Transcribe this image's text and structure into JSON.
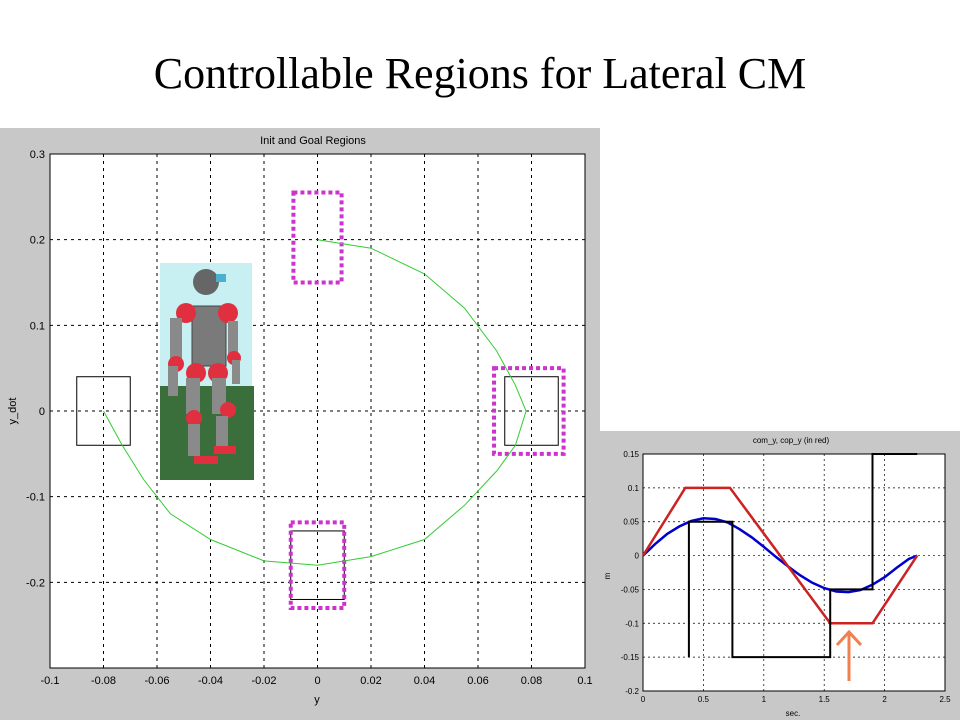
{
  "slide": {
    "title": "Controllable Regions for Lateral CM"
  },
  "chart_data": [
    {
      "type": "scatter",
      "title": "Init and Goal Regions",
      "xlabel": "y",
      "ylabel": "y_dot",
      "xlim": [
        -0.1,
        0.1
      ],
      "ylim": [
        -0.3,
        0.3
      ],
      "xticks": [
        "-0.1",
        "-0.08",
        "-0.06",
        "-0.04",
        "-0.02",
        "0",
        "0.02",
        "0.04",
        "0.06",
        "0.08",
        "0.1"
      ],
      "yticks": [
        "0.3",
        "0.2",
        "0.1",
        "0",
        "-0.1",
        "-0.2"
      ],
      "grid": true,
      "trajectory": {
        "color": "#33cc33",
        "points": [
          [
            0,
            0.2
          ],
          [
            0.02,
            0.19
          ],
          [
            0.04,
            0.16
          ],
          [
            0.055,
            0.12
          ],
          [
            0.067,
            0.07
          ],
          [
            0.074,
            0.03
          ],
          [
            0.078,
            0
          ],
          [
            0.074,
            -0.04
          ],
          [
            0.067,
            -0.07
          ],
          [
            0.055,
            -0.11
          ],
          [
            0.04,
            -0.15
          ],
          [
            0.02,
            -0.17
          ],
          [
            0,
            -0.18
          ],
          [
            -0.02,
            -0.175
          ],
          [
            -0.04,
            -0.15
          ],
          [
            -0.055,
            -0.12
          ],
          [
            -0.065,
            -0.08
          ],
          [
            -0.073,
            -0.04
          ],
          [
            -0.08,
            0
          ]
        ]
      },
      "init_region": {
        "x": [
          -0.09,
          -0.07
        ],
        "y": [
          -0.04,
          0.04
        ],
        "color": "#000000"
      },
      "goal_regions": [
        {
          "x": [
            -0.009,
            0.009
          ],
          "y": [
            0.15,
            0.255
          ],
          "color": "#cc33cc"
        },
        {
          "x": [
            0.066,
            0.092
          ],
          "y": [
            -0.05,
            0.05
          ],
          "color": "#cc33cc"
        },
        {
          "x": [
            -0.01,
            0.01
          ],
          "y": [
            -0.23,
            -0.13
          ],
          "color": "#cc33cc"
        }
      ],
      "inner_regions": [
        {
          "x": [
            0.07,
            0.09
          ],
          "y": [
            -0.04,
            0.04
          ]
        },
        {
          "x": [
            -0.01,
            0.01
          ],
          "y": [
            -0.22,
            -0.14
          ]
        }
      ]
    },
    {
      "type": "line",
      "title": "com_y, cop_y (in red)",
      "xlabel": "sec.",
      "ylabel": "m",
      "xlim": [
        0,
        2.5
      ],
      "ylim": [
        -0.2,
        0.15
      ],
      "xticks": [
        "0",
        "0.5",
        "1",
        "1.5",
        "2",
        "2.5"
      ],
      "yticks": [
        "0.15",
        "0.1",
        "0.05",
        "0",
        "-0.05",
        "-0.1",
        "-0.15",
        "-0.2"
      ],
      "grid": true,
      "series": [
        {
          "color": "#0000cc",
          "x": [
            0,
            0.1,
            0.2,
            0.3,
            0.4,
            0.5,
            0.6,
            0.7,
            0.8,
            0.9,
            1.0,
            1.1,
            1.2,
            1.3,
            1.4,
            1.5,
            1.6,
            1.7,
            1.8,
            1.9,
            2.0,
            2.1,
            2.2,
            2.27
          ],
          "y": [
            0,
            0.017,
            0.032,
            0.043,
            0.051,
            0.055,
            0.054,
            0.049,
            0.039,
            0.027,
            0.013,
            -0.002,
            -0.016,
            -0.029,
            -0.04,
            -0.048,
            -0.053,
            -0.054,
            -0.051,
            -0.043,
            -0.032,
            -0.018,
            -0.005,
            0
          ]
        },
        {
          "color": "#cc2222",
          "x": [
            0,
            0.35,
            0.72,
            1.55,
            1.9,
            2.27
          ],
          "y": [
            0,
            0.1,
            0.1,
            -0.1,
            -0.1,
            0
          ]
        },
        {
          "color": "#000000",
          "x": [
            0.38,
            0.38,
            0.5,
            0.5,
            0.74,
            0.74,
            1.55,
            1.55,
            1.9,
            1.9,
            2.27
          ],
          "y": [
            -0.15,
            0.05,
            0.05,
            0.05,
            0.05,
            -0.15,
            -0.15,
            -0.05,
            -0.05,
            0.15,
            0.15
          ]
        }
      ]
    }
  ]
}
